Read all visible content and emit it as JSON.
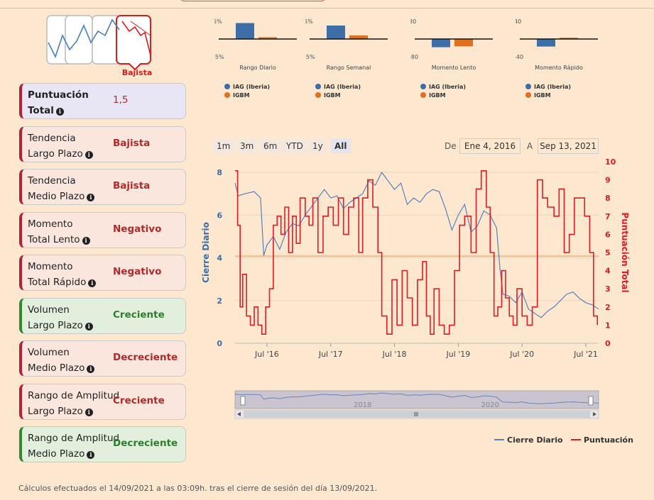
{
  "trend": {
    "label": "Bajista"
  },
  "cards": [
    {
      "line1": "Puntuación",
      "line2": "Total",
      "value": "1,5",
      "style": "first"
    },
    {
      "line1": "Tendencia",
      "line2": "Largo Plazo",
      "value": "Bajista",
      "style": "red"
    },
    {
      "line1": "Tendencia",
      "line2": "Medio Plazo",
      "value": "Bajista",
      "style": "red"
    },
    {
      "line1": "Momento",
      "line2": "Total Lento",
      "value": "Negativo",
      "style": "red"
    },
    {
      "line1": "Momento",
      "line2": "Total Rápido",
      "value": "Negativo",
      "style": "red"
    },
    {
      "line1": "Volumen",
      "line2": "Largo Plazo",
      "value": "Creciente",
      "style": "green"
    },
    {
      "line1": "Volumen",
      "line2": "Medio Plazo",
      "value": "Decreciente",
      "style": "red"
    },
    {
      "line1": "Rango de Amplitud",
      "line2": "Largo Plazo",
      "value": "Creciente",
      "style": "red"
    },
    {
      "line1": "Rango de Amplitud",
      "line2": "Medio Plazo",
      "value": "Decreciente",
      "style": "green"
    }
  ],
  "range_selector": {
    "buttons": [
      "1m",
      "3m",
      "6m",
      "YTD",
      "1y",
      "All"
    ],
    "active": "All"
  },
  "date_range": {
    "from_label": "De",
    "from": "Ene 4, 2016",
    "to_label": "A",
    "to": "Sep 13, 2021"
  },
  "colors": {
    "iag": "#3d6ea8",
    "igbm": "#e07020",
    "price": "#5a7fbf",
    "score": "#e01b24",
    "threshold": "#f0b070"
  },
  "footer": "Cálculos efectuados el 14/09/2021 a las 03:09h. tras el cierre de sesión del día 13/09/2021.",
  "chart_data": [
    {
      "type": "bar",
      "xlabel": "Rango Diario",
      "ylim": [
        -5,
        5
      ],
      "tick_labels": [
        "5%",
        "-5%"
      ],
      "series": [
        {
          "name": "IAG (Iberia)",
          "values": [
            4.5
          ]
        },
        {
          "name": "IGBM",
          "values": [
            0.5
          ]
        }
      ]
    },
    {
      "type": "bar",
      "xlabel": "Rango Semanal",
      "ylim": [
        -5,
        5
      ],
      "tick_labels": [
        "5%",
        "-5%"
      ],
      "series": [
        {
          "name": "IAG (Iberia)",
          "values": [
            3.8
          ]
        },
        {
          "name": "IGBM",
          "values": [
            1.0
          ]
        }
      ]
    },
    {
      "type": "bar",
      "xlabel": "Momento Lento",
      "ylim": [
        -80,
        80
      ],
      "tick_labels": [
        "80",
        "-80"
      ],
      "series": [
        {
          "name": "IAG (Iberia)",
          "values": [
            -37
          ]
        },
        {
          "name": "IGBM",
          "values": [
            -33
          ]
        }
      ]
    },
    {
      "type": "bar",
      "xlabel": "Momento Rápido",
      "ylim": [
        -40,
        40
      ],
      "tick_labels": [
        "40",
        "-40"
      ],
      "series": [
        {
          "name": "IAG (Iberia)",
          "values": [
            -17
          ]
        },
        {
          "name": "IGBM",
          "values": [
            3
          ]
        }
      ]
    },
    {
      "type": "line",
      "ylabel": "Cierre Diario",
      "ylabel2": "Puntuación Total",
      "ylim": [
        0,
        8.5
      ],
      "ylim2": [
        0,
        10
      ],
      "yticks": [
        0,
        2,
        4,
        6,
        8
      ],
      "yticks2": [
        0,
        1,
        2,
        3,
        4,
        5,
        6,
        7,
        8,
        9,
        10
      ],
      "x_ticks": [
        {
          "label": "Jul '16",
          "x": 2016.5
        },
        {
          "label": "Jul '17",
          "x": 2017.5
        },
        {
          "label": "Jul '18",
          "x": 2018.5
        },
        {
          "label": "Jul '19",
          "x": 2019.5
        },
        {
          "label": "Jul '20",
          "x": 2020.5
        },
        {
          "label": "Jul '21",
          "x": 2021.5
        }
      ],
      "xlim": [
        2016.0,
        2021.7
      ],
      "threshold_right": 4.8,
      "navigator_labels": [
        {
          "label": "2018",
          "x": 2018.0
        },
        {
          "label": "2020",
          "x": 2020.0
        }
      ],
      "series": [
        {
          "name": "Cierre Diario",
          "axis": "left",
          "x": [
            2016.0,
            2016.05,
            2016.15,
            2016.3,
            2016.4,
            2016.45,
            2016.5,
            2016.6,
            2016.7,
            2016.8,
            2016.9,
            2017.0,
            2017.1,
            2017.2,
            2017.3,
            2017.4,
            2017.5,
            2017.6,
            2017.7,
            2017.8,
            2017.9,
            2018.0,
            2018.1,
            2018.2,
            2018.3,
            2018.4,
            2018.5,
            2018.6,
            2018.7,
            2018.8,
            2018.9,
            2019.0,
            2019.1,
            2019.2,
            2019.3,
            2019.4,
            2019.5,
            2019.6,
            2019.7,
            2019.8,
            2019.9,
            2020.0,
            2020.1,
            2020.15,
            2020.2,
            2020.3,
            2020.4,
            2020.5,
            2020.6,
            2020.7,
            2020.8,
            2020.9,
            2021.0,
            2021.1,
            2021.2,
            2021.3,
            2021.4,
            2021.5,
            2021.6,
            2021.7
          ],
          "values": [
            7.5,
            6.9,
            7.0,
            7.1,
            6.8,
            4.1,
            4.6,
            5.0,
            4.4,
            5.2,
            5.6,
            5.5,
            6.0,
            6.4,
            6.8,
            7.2,
            6.8,
            6.9,
            6.3,
            6.6,
            6.8,
            7.0,
            7.6,
            7.4,
            8.0,
            7.6,
            7.2,
            7.5,
            6.5,
            6.8,
            6.6,
            7.0,
            7.2,
            7.1,
            6.3,
            5.3,
            6.0,
            6.5,
            5.2,
            5.5,
            6.2,
            6.0,
            5.4,
            3.6,
            2.3,
            2.2,
            1.9,
            2.4,
            1.6,
            1.4,
            1.2,
            1.5,
            1.7,
            2.0,
            2.3,
            2.4,
            2.1,
            1.9,
            1.8,
            1.6
          ]
        },
        {
          "name": "Puntuación",
          "axis": "right",
          "x": [
            2016.0,
            2016.04,
            2016.08,
            2016.12,
            2016.18,
            2016.24,
            2016.3,
            2016.36,
            2016.42,
            2016.48,
            2016.54,
            2016.6,
            2016.66,
            2016.72,
            2016.78,
            2016.84,
            2016.9,
            2016.96,
            2017.02,
            2017.1,
            2017.16,
            2017.22,
            2017.3,
            2017.38,
            2017.46,
            2017.54,
            2017.62,
            2017.7,
            2017.78,
            2017.86,
            2017.94,
            2018.0,
            2018.08,
            2018.16,
            2018.24,
            2018.3,
            2018.38,
            2018.46,
            2018.54,
            2018.62,
            2018.7,
            2018.78,
            2018.86,
            2018.94,
            2019.0,
            2019.06,
            2019.12,
            2019.2,
            2019.28,
            2019.36,
            2019.44,
            2019.52,
            2019.6,
            2019.7,
            2019.78,
            2019.86,
            2019.94,
            2020.0,
            2020.06,
            2020.12,
            2020.18,
            2020.24,
            2020.3,
            2020.36,
            2020.42,
            2020.5,
            2020.58,
            2020.66,
            2020.74,
            2020.82,
            2020.9,
            2021.0,
            2021.08,
            2021.16,
            2021.24,
            2021.32,
            2021.4,
            2021.48,
            2021.56,
            2021.62,
            2021.68
          ],
          "values": [
            9.5,
            6.5,
            2.0,
            3.8,
            1.5,
            1.0,
            2.0,
            1.0,
            0.5,
            2.0,
            3.0,
            6.5,
            7.0,
            6.0,
            7.5,
            5.0,
            7.0,
            5.5,
            8.0,
            7.0,
            6.5,
            8.0,
            5.0,
            7.0,
            7.5,
            6.5,
            8.0,
            6.0,
            7.5,
            8.0,
            5.0,
            8.0,
            9.0,
            7.5,
            5.0,
            1.5,
            0.5,
            3.5,
            1.0,
            4.0,
            2.5,
            1.0,
            3.5,
            4.5,
            1.5,
            0.5,
            3.0,
            1.0,
            0.5,
            1.0,
            4.0,
            6.5,
            7.0,
            5.0,
            8.5,
            9.5,
            7.5,
            5.0,
            1.5,
            2.0,
            4.0,
            2.5,
            1.5,
            1.0,
            3.0,
            1.5,
            1.0,
            2.0,
            9.0,
            8.0,
            7.5,
            7.0,
            8.5,
            5.0,
            6.0,
            8.0,
            8.0,
            7.0,
            5.0,
            1.5,
            1.0
          ]
        }
      ]
    }
  ]
}
